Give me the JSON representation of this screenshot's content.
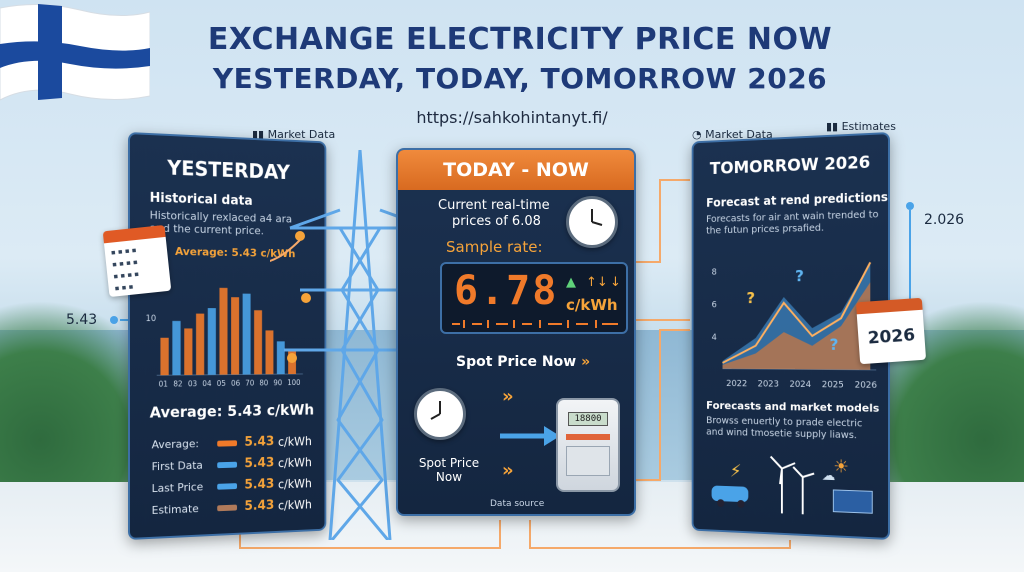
{
  "title_line1": "EXCHANGE ELECTRICITY PRICE NOW",
  "title_line2": "YESTERDAY, TODAY, TOMORROW 2026",
  "url": "https://sahkohintanyt.fi/",
  "tags": {
    "market_data_left": "Market Data",
    "market_data_right": "Market Data",
    "estimates": "Estimates"
  },
  "side_values": {
    "left": "5.43",
    "right": "2.026"
  },
  "yesterday": {
    "title": "YESTERDAY",
    "heading": "Historical data",
    "desc_line1": "Historically rexlaced a4 ara",
    "desc_line2": "and the current price.",
    "avg_label": "Average: 5.43 c/kWh",
    "avg_big": "Average: 5.43 c/kWh",
    "chart_ytick": "10",
    "chart_xticks": [
      "01",
      "82",
      "03",
      "04",
      "05",
      "06",
      "70",
      "80",
      "90",
      "100"
    ],
    "legend": [
      {
        "label": "Average:",
        "value": "5.43",
        "unit": "c/kWh",
        "color": "#f07a2a"
      },
      {
        "label": "First Data",
        "value": "5.43",
        "unit": "c/kWh",
        "color": "#4aa3e8"
      },
      {
        "label": "Last Price",
        "value": "5.43",
        "unit": "c/kWh",
        "color": "#4aa3e8"
      },
      {
        "label": "Estimate",
        "value": "5.43",
        "unit": "c/kWh",
        "color": "#b07a5a"
      }
    ]
  },
  "today": {
    "title": "TODAY - NOW",
    "current_line1": "Current real-time",
    "current_line2": "prices of 6.08",
    "sample_rate": "Sample rate:",
    "display_value": "6.78",
    "display_unit": "c/kWh",
    "spot_price_now": "Spot Price Now",
    "spot_price_line1": "Spot Price",
    "spot_price_line2": "Now",
    "meter_value": "18800",
    "data_source": "Data source"
  },
  "tomorrow": {
    "title": "TOMORROW 2026",
    "heading": "Forecast at rend predictions",
    "desc_line1": "Forecasts for air ant wain trended to",
    "desc_line2": "the futun prices prsafied.",
    "chart_xticks": [
      "2022",
      "2023",
      "2024",
      "2025",
      "2026"
    ],
    "chart_yticks": [
      "8",
      "6",
      "4"
    ],
    "badge": "2026",
    "models_heading": "Forecasts and market models",
    "models_line1": "Browss enuertly to prade electric",
    "models_line2": "and wind tmosetie supply liaws."
  },
  "colors": {
    "accent": "#f07a2a",
    "panel": "#1b3150",
    "title": "#1e3a78"
  }
}
